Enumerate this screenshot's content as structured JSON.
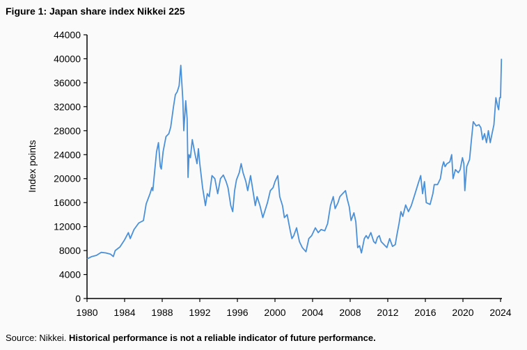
{
  "title": "Figure 1: Japan share index Nikkei 225",
  "source_prefix": "Source: Nikkei.",
  "source_note": "Historical performance is not a reliable indicator of future performance.",
  "chart_data": {
    "type": "line",
    "title": "Figure 1: Japan share index Nikkei 225",
    "xlabel": "",
    "ylabel": "Index points",
    "xlim": [
      1980,
      2024
    ],
    "ylim": [
      0,
      44000
    ],
    "xticks": [
      1980,
      1984,
      1988,
      1992,
      1996,
      2000,
      2004,
      2008,
      2012,
      2016,
      2020,
      2024
    ],
    "yticks": [
      0,
      4000,
      8000,
      12000,
      16000,
      20000,
      24000,
      28000,
      32000,
      36000,
      40000,
      44000
    ],
    "grid": false,
    "line_color": "#4a90d9",
    "series": [
      {
        "points": [
          [
            1980.0,
            6600
          ],
          [
            1980.5,
            7000
          ],
          [
            1981.0,
            7200
          ],
          [
            1981.5,
            7700
          ],
          [
            1982.0,
            7600
          ],
          [
            1982.5,
            7400
          ],
          [
            1982.8,
            7000
          ],
          [
            1983.0,
            8000
          ],
          [
            1983.5,
            8600
          ],
          [
            1984.0,
            9800
          ],
          [
            1984.4,
            11000
          ],
          [
            1984.6,
            10000
          ],
          [
            1985.0,
            11500
          ],
          [
            1985.5,
            12600
          ],
          [
            1986.0,
            13000
          ],
          [
            1986.3,
            15800
          ],
          [
            1986.7,
            17500
          ],
          [
            1986.9,
            18500
          ],
          [
            1987.0,
            18000
          ],
          [
            1987.4,
            24500
          ],
          [
            1987.6,
            26000
          ],
          [
            1987.8,
            22000
          ],
          [
            1987.9,
            21600
          ],
          [
            1988.1,
            24500
          ],
          [
            1988.4,
            27000
          ],
          [
            1988.7,
            27500
          ],
          [
            1988.9,
            28600
          ],
          [
            1989.2,
            32000
          ],
          [
            1989.4,
            34000
          ],
          [
            1989.6,
            34500
          ],
          [
            1989.8,
            35500
          ],
          [
            1989.98,
            38900
          ],
          [
            1990.2,
            33000
          ],
          [
            1990.3,
            28000
          ],
          [
            1990.5,
            33000
          ],
          [
            1990.65,
            30000
          ],
          [
            1990.75,
            20200
          ],
          [
            1990.85,
            24000
          ],
          [
            1991.0,
            23500
          ],
          [
            1991.2,
            26500
          ],
          [
            1991.5,
            24000
          ],
          [
            1991.7,
            22500
          ],
          [
            1991.85,
            25000
          ],
          [
            1992.0,
            22500
          ],
          [
            1992.3,
            18500
          ],
          [
            1992.6,
            15500
          ],
          [
            1992.8,
            17500
          ],
          [
            1993.0,
            17000
          ],
          [
            1993.3,
            20500
          ],
          [
            1993.6,
            20000
          ],
          [
            1993.9,
            17500
          ],
          [
            1994.2,
            20000
          ],
          [
            1994.5,
            20600
          ],
          [
            1994.8,
            19500
          ],
          [
            1995.0,
            18500
          ],
          [
            1995.3,
            15500
          ],
          [
            1995.5,
            14500
          ],
          [
            1995.7,
            18000
          ],
          [
            1995.9,
            19800
          ],
          [
            1996.2,
            21000
          ],
          [
            1996.4,
            22500
          ],
          [
            1996.6,
            21000
          ],
          [
            1996.9,
            19500
          ],
          [
            1997.1,
            18000
          ],
          [
            1997.4,
            20500
          ],
          [
            1997.7,
            17500
          ],
          [
            1997.9,
            15500
          ],
          [
            1998.1,
            17000
          ],
          [
            1998.4,
            15500
          ],
          [
            1998.7,
            13500
          ],
          [
            1998.9,
            14500
          ],
          [
            1999.2,
            16000
          ],
          [
            1999.5,
            18000
          ],
          [
            1999.8,
            18500
          ],
          [
            2000.0,
            19500
          ],
          [
            2000.3,
            20500
          ],
          [
            2000.5,
            17000
          ],
          [
            2000.8,
            15500
          ],
          [
            2001.0,
            13500
          ],
          [
            2001.3,
            14000
          ],
          [
            2001.6,
            11500
          ],
          [
            2001.8,
            10000
          ],
          [
            2002.0,
            10500
          ],
          [
            2002.3,
            11800
          ],
          [
            2002.6,
            9500
          ],
          [
            2002.9,
            8500
          ],
          [
            2003.3,
            7800
          ],
          [
            2003.6,
            10000
          ],
          [
            2003.9,
            10500
          ],
          [
            2004.3,
            11800
          ],
          [
            2004.6,
            11000
          ],
          [
            2004.9,
            11500
          ],
          [
            2005.3,
            11300
          ],
          [
            2005.6,
            12500
          ],
          [
            2005.9,
            15500
          ],
          [
            2006.2,
            17000
          ],
          [
            2006.4,
            15000
          ],
          [
            2006.7,
            16000
          ],
          [
            2006.9,
            17000
          ],
          [
            2007.2,
            17500
          ],
          [
            2007.5,
            18000
          ],
          [
            2007.7,
            16500
          ],
          [
            2007.9,
            15300
          ],
          [
            2008.1,
            13000
          ],
          [
            2008.4,
            14300
          ],
          [
            2008.6,
            12800
          ],
          [
            2008.8,
            8500
          ],
          [
            2009.0,
            8800
          ],
          [
            2009.2,
            7600
          ],
          [
            2009.5,
            10000
          ],
          [
            2009.7,
            10500
          ],
          [
            2009.9,
            10000
          ],
          [
            2010.2,
            11000
          ],
          [
            2010.5,
            9500
          ],
          [
            2010.7,
            9200
          ],
          [
            2010.9,
            10200
          ],
          [
            2011.1,
            10500
          ],
          [
            2011.3,
            9500
          ],
          [
            2011.6,
            9000
          ],
          [
            2011.9,
            8500
          ],
          [
            2012.2,
            10000
          ],
          [
            2012.5,
            8700
          ],
          [
            2012.8,
            9000
          ],
          [
            2012.95,
            10400
          ],
          [
            2013.2,
            12500
          ],
          [
            2013.4,
            14500
          ],
          [
            2013.6,
            13700
          ],
          [
            2013.9,
            15600
          ],
          [
            2014.2,
            14500
          ],
          [
            2014.5,
            15500
          ],
          [
            2014.9,
            17500
          ],
          [
            2015.2,
            19000
          ],
          [
            2015.5,
            20500
          ],
          [
            2015.7,
            17500
          ],
          [
            2015.9,
            19500
          ],
          [
            2016.1,
            16000
          ],
          [
            2016.5,
            15700
          ],
          [
            2016.8,
            17500
          ],
          [
            2016.95,
            19000
          ],
          [
            2017.3,
            19000
          ],
          [
            2017.6,
            20000
          ],
          [
            2017.8,
            22000
          ],
          [
            2017.95,
            22800
          ],
          [
            2018.1,
            22000
          ],
          [
            2018.3,
            22500
          ],
          [
            2018.6,
            22800
          ],
          [
            2018.8,
            24000
          ],
          [
            2018.95,
            20000
          ],
          [
            2019.2,
            21500
          ],
          [
            2019.5,
            21000
          ],
          [
            2019.7,
            21500
          ],
          [
            2019.95,
            23500
          ],
          [
            2020.1,
            22500
          ],
          [
            2020.2,
            18000
          ],
          [
            2020.4,
            22000
          ],
          [
            2020.7,
            23200
          ],
          [
            2020.9,
            26500
          ],
          [
            2021.1,
            29500
          ],
          [
            2021.4,
            28800
          ],
          [
            2021.7,
            29000
          ],
          [
            2021.9,
            28500
          ],
          [
            2022.1,
            26500
          ],
          [
            2022.3,
            27500
          ],
          [
            2022.5,
            26000
          ],
          [
            2022.7,
            28000
          ],
          [
            2022.9,
            26000
          ],
          [
            2023.1,
            27500
          ],
          [
            2023.3,
            29000
          ],
          [
            2023.5,
            33500
          ],
          [
            2023.7,
            32000
          ],
          [
            2023.8,
            31500
          ],
          [
            2023.9,
            33500
          ],
          [
            2024.0,
            33500
          ],
          [
            2024.1,
            40000
          ]
        ]
      }
    ]
  }
}
